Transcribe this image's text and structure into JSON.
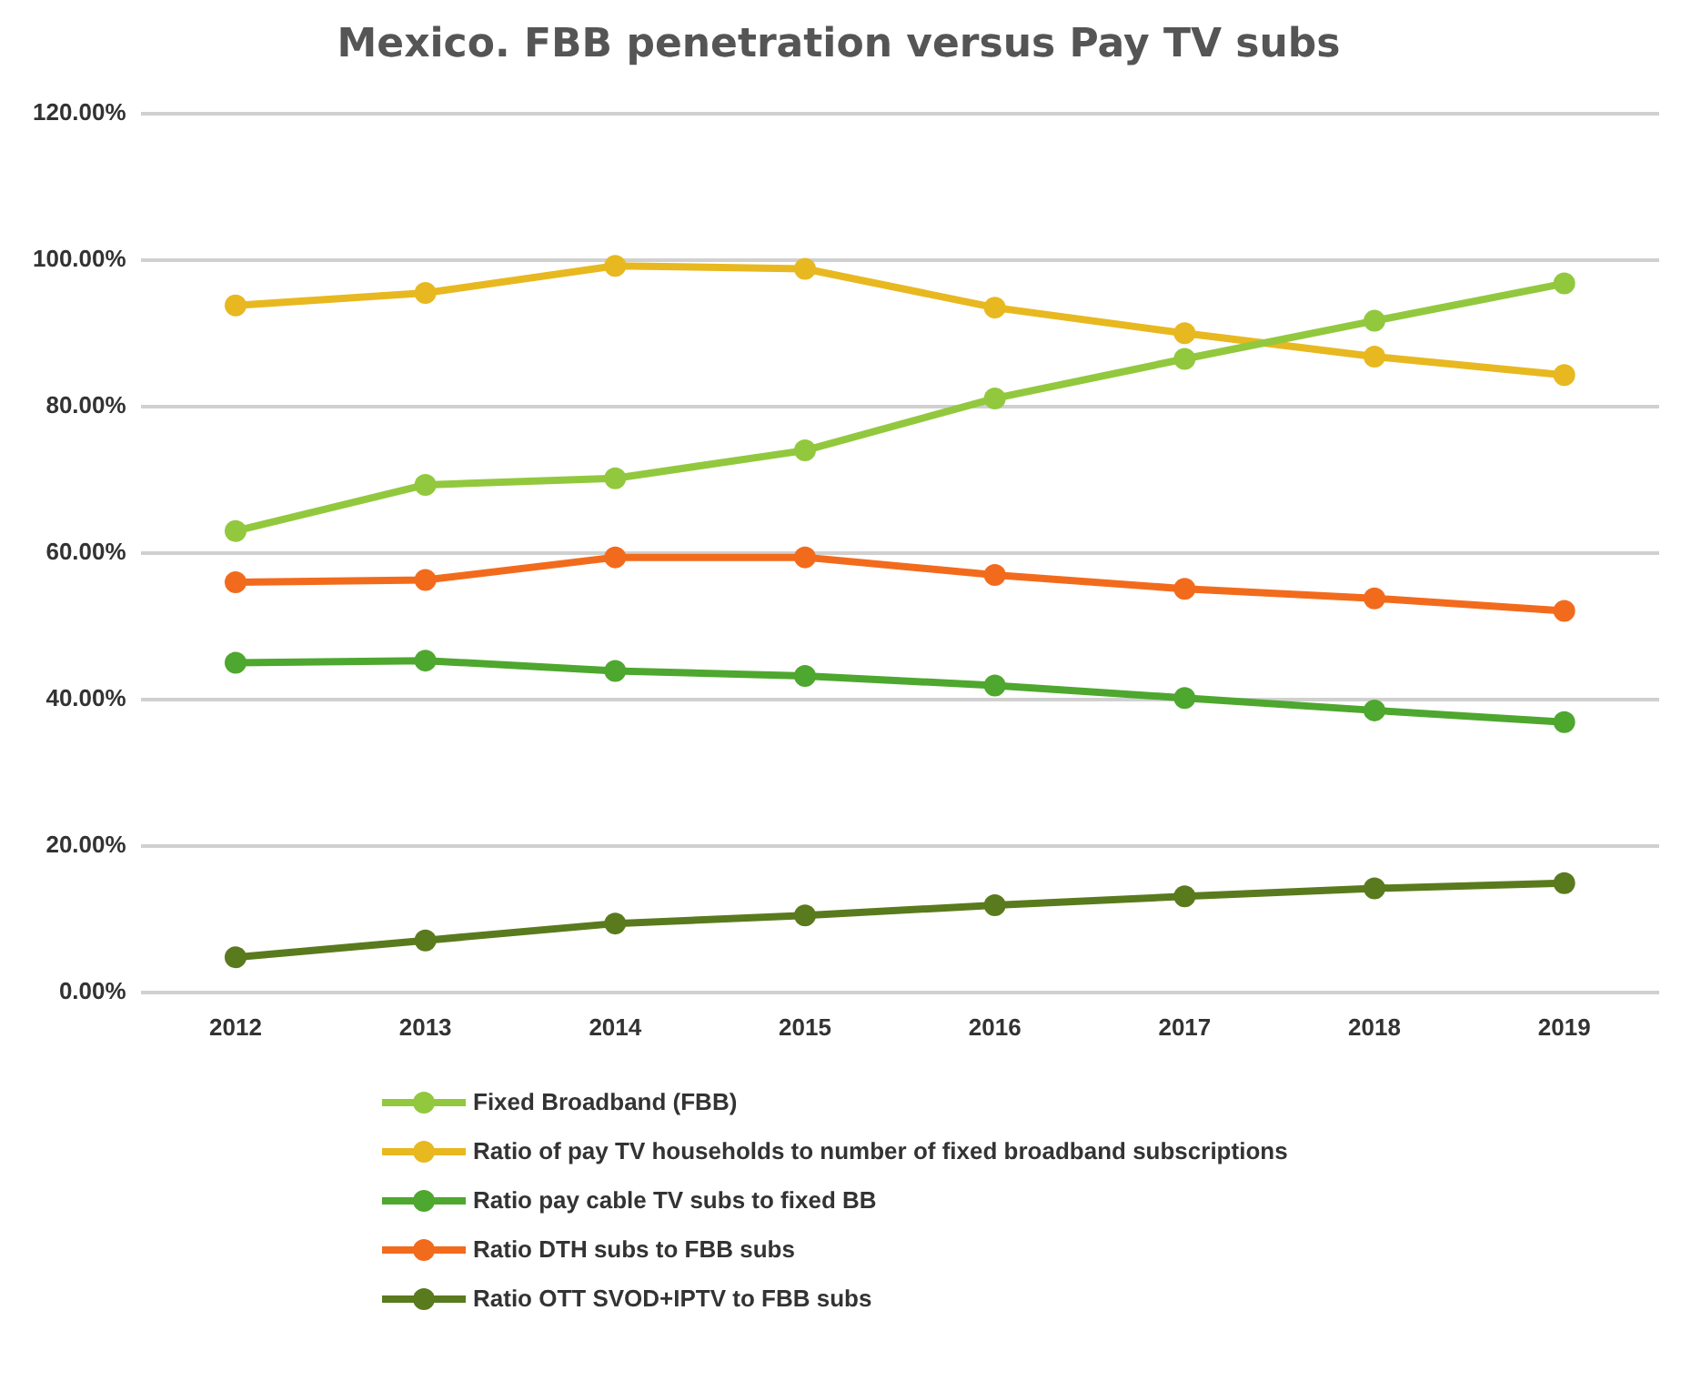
{
  "chart_data": {
    "type": "line",
    "title": "Mexico. FBB penetration versus Pay TV subs",
    "categories": [
      "2012",
      "2013",
      "2014",
      "2015",
      "2016",
      "2017",
      "2018",
      "2019"
    ],
    "series": [
      {
        "name": "Fixed Broadband (FBB)",
        "color": "#92c83e",
        "values": [
          63.0,
          69.3,
          70.2,
          74.0,
          81.1,
          86.5,
          91.7,
          96.8
        ]
      },
      {
        "name": "Ratio of pay TV households to number of fixed broadband subscriptions",
        "color": "#e8b820",
        "values": [
          93.8,
          95.5,
          99.2,
          98.8,
          93.5,
          90.0,
          86.8,
          84.3
        ]
      },
      {
        "name": "Ratio pay cable TV subs to fixed BB",
        "color": "#4ea72e",
        "values": [
          45.0,
          45.3,
          43.9,
          43.2,
          41.9,
          40.2,
          38.5,
          36.9
        ]
      },
      {
        "name": "Ratio DTH subs to FBB subs",
        "color": "#f26b1d",
        "values": [
          56.0,
          56.3,
          59.4,
          59.4,
          57.0,
          55.1,
          53.8,
          52.1
        ]
      },
      {
        "name": "Ratio OTT SVOD+IPTV to FBB subs",
        "color": "#5a7a1e",
        "values": [
          4.8,
          7.1,
          9.4,
          10.5,
          11.9,
          13.1,
          14.2,
          14.9
        ]
      }
    ],
    "ylim": [
      0,
      120
    ],
    "yticks": [
      {
        "value": 0,
        "label": "0.00%"
      },
      {
        "value": 20,
        "label": "20.00%"
      },
      {
        "value": 40,
        "label": "40.00%"
      },
      {
        "value": 60,
        "label": "60.00%"
      },
      {
        "value": 80,
        "label": "80.00%"
      },
      {
        "value": 100,
        "label": "100.00%"
      },
      {
        "value": 120,
        "label": "120.00%"
      }
    ],
    "grid": "y",
    "legend": "bottom",
    "marker": "circle",
    "line_style": "solid"
  }
}
